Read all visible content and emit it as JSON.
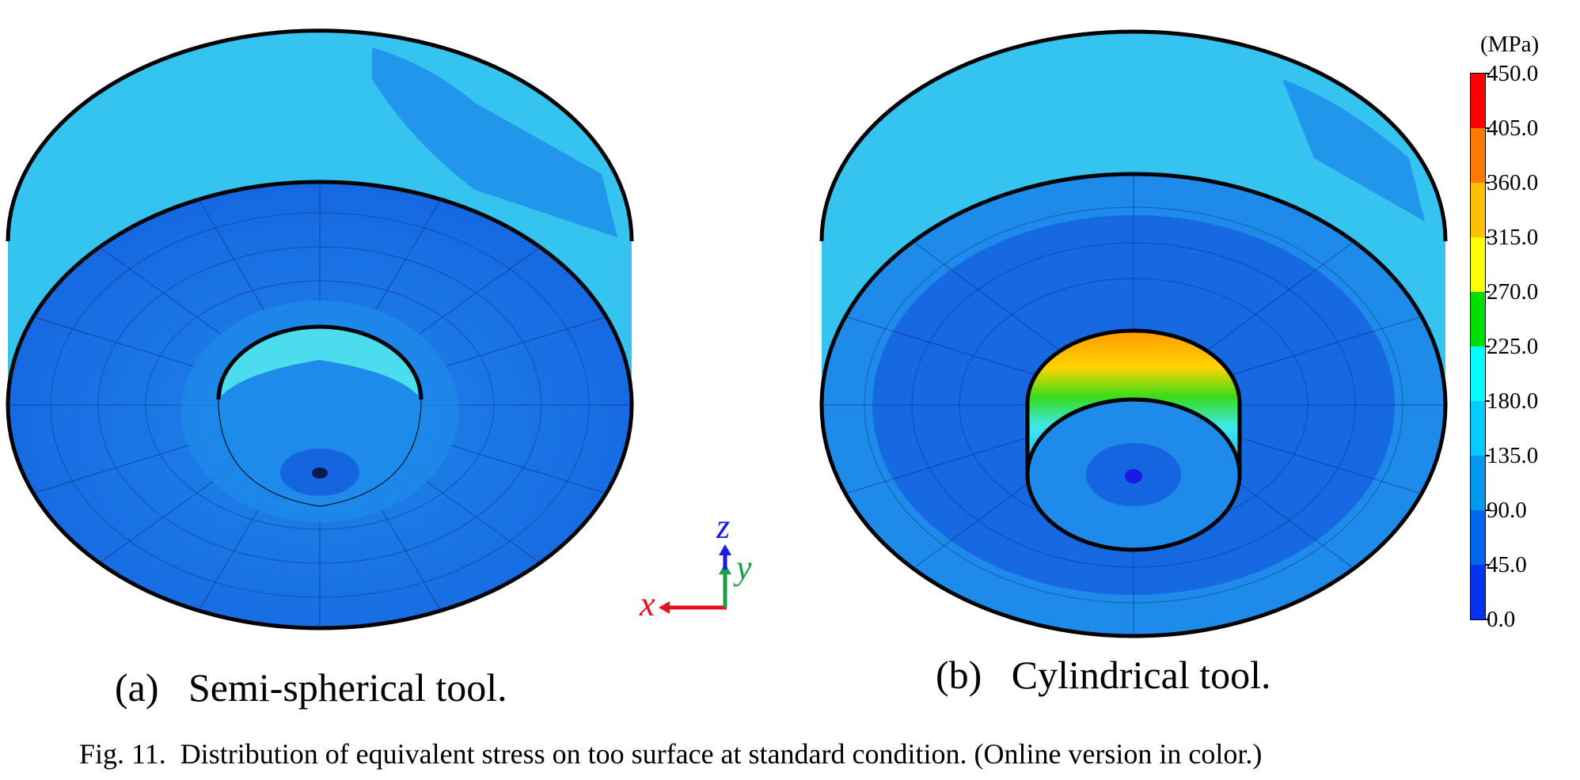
{
  "figure": {
    "subcaption_a": "(a)   Semi-spherical tool.",
    "subcaption_b": "(b)   Cylindrical tool.",
    "caption": "Fig. 11.  Distribution of equivalent stress on too surface at standard condition. (Online version in color.)"
  },
  "axes_triad": {
    "x_label": "x",
    "y_label": "y",
    "z_label": "z",
    "x_color": "#e8101a",
    "y_color": "#1a9e4a",
    "z_color": "#1a1ae6"
  },
  "colorbar": {
    "unit": "(MPa)",
    "ticks": [
      "450.0",
      "405.0",
      "360.0",
      "315.0",
      "270.0",
      "225.0",
      "180.0",
      "135.0",
      "90.0",
      "45.0",
      "0.0"
    ],
    "band_colors": [
      "#ff0000",
      "#ff7a00",
      "#ffc000",
      "#ffff00",
      "#00dd00",
      "#00ffff",
      "#00ccff",
      "#0099ee",
      "#0066ee",
      "#0033ee"
    ]
  },
  "colors": {
    "stress_low": "#1565e0",
    "stress_mid": "#1e8bea",
    "stress_light": "#35c3f0",
    "stress_cyan": "#50e6ee",
    "outline": "#000000"
  }
}
